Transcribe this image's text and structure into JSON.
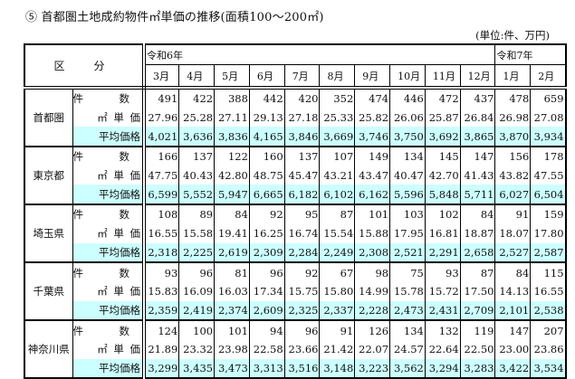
{
  "title": "⑤  首都圏土地成約物件㎡単価の推移(面積100～200㎡)",
  "unit_note": "(単位:件、万円)",
  "header": {
    "kubun": "区　分",
    "year_groups": [
      {
        "label": "令和6年",
        "span": 10
      },
      {
        "label": "令和7年",
        "span": 2
      }
    ],
    "months": [
      "3月",
      "4月",
      "5月",
      "6月",
      "7月",
      "8月",
      "9月",
      "10月",
      "11月",
      "12月",
      "1月",
      "2月"
    ]
  },
  "row_labels": {
    "count": "件　数",
    "unit_price": "㎡ 単 価",
    "avg_price": "平均価格"
  },
  "colors": {
    "avg_row_bg": "#ccffff",
    "border": "#000000"
  },
  "regions": [
    {
      "name": "首都圏",
      "count": [
        "491",
        "422",
        "388",
        "442",
        "420",
        "352",
        "474",
        "446",
        "472",
        "437",
        "478",
        "659"
      ],
      "unit_price": [
        "27.96",
        "25.28",
        "27.11",
        "29.13",
        "27.18",
        "25.33",
        "25.82",
        "26.06",
        "25.87",
        "26.84",
        "26.98",
        "27.08"
      ],
      "avg_price": [
        "4,021",
        "3,636",
        "3,836",
        "4,165",
        "3,846",
        "3,669",
        "3,746",
        "3,750",
        "3,692",
        "3,865",
        "3,870",
        "3,934"
      ]
    },
    {
      "name": "東京都",
      "count": [
        "166",
        "137",
        "122",
        "160",
        "137",
        "107",
        "149",
        "134",
        "145",
        "147",
        "156",
        "178"
      ],
      "unit_price": [
        "47.75",
        "40.43",
        "42.80",
        "48.75",
        "45.47",
        "43.21",
        "43.47",
        "40.47",
        "42.70",
        "41.43",
        "43.82",
        "47.55"
      ],
      "avg_price": [
        "6,599",
        "5,552",
        "5,947",
        "6,665",
        "6,182",
        "6,102",
        "6,162",
        "5,596",
        "5,848",
        "5,711",
        "6,027",
        "6,504"
      ]
    },
    {
      "name": "埼玉県",
      "count": [
        "108",
        "89",
        "84",
        "92",
        "95",
        "87",
        "101",
        "103",
        "102",
        "84",
        "91",
        "159"
      ],
      "unit_price": [
        "16.55",
        "15.58",
        "19.41",
        "16.25",
        "16.74",
        "15.54",
        "15.88",
        "17.95",
        "16.81",
        "18.87",
        "18.07",
        "17.80"
      ],
      "avg_price": [
        "2,318",
        "2,225",
        "2,619",
        "2,309",
        "2,284",
        "2,249",
        "2,308",
        "2,521",
        "2,291",
        "2,658",
        "2,527",
        "2,587"
      ]
    },
    {
      "name": "千葉県",
      "count": [
        "93",
        "96",
        "81",
        "96",
        "92",
        "67",
        "98",
        "75",
        "93",
        "87",
        "84",
        "115"
      ],
      "unit_price": [
        "15.83",
        "16.09",
        "16.03",
        "17.34",
        "15.75",
        "15.80",
        "14.99",
        "15.78",
        "15.72",
        "17.50",
        "14.13",
        "16.55"
      ],
      "avg_price": [
        "2,359",
        "2,419",
        "2,374",
        "2,609",
        "2,325",
        "2,337",
        "2,228",
        "2,473",
        "2,431",
        "2,709",
        "2,101",
        "2,538"
      ]
    },
    {
      "name": "神奈川県",
      "count": [
        "124",
        "100",
        "101",
        "94",
        "96",
        "91",
        "126",
        "134",
        "132",
        "119",
        "147",
        "207"
      ],
      "unit_price": [
        "21.89",
        "23.32",
        "23.98",
        "22.58",
        "23.66",
        "21.42",
        "22.07",
        "24.57",
        "22.64",
        "22.50",
        "23.00",
        "23.86"
      ],
      "avg_price": [
        "3,299",
        "3,435",
        "3,473",
        "3,313",
        "3,516",
        "3,148",
        "3,223",
        "3,562",
        "3,294",
        "3,283",
        "3,422",
        "3,534"
      ]
    }
  ]
}
